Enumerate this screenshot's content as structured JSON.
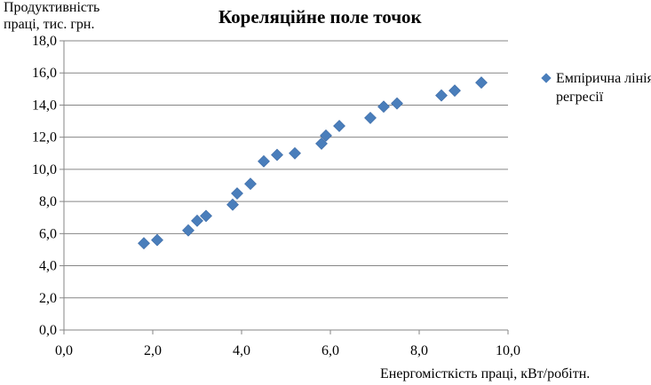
{
  "chart_data": {
    "type": "scatter",
    "title": "Кореляційне поле точок",
    "ylabel_lines": [
      "Продуктивність",
      "праці, тис. грн."
    ],
    "xlabel": "Енергомісткість праці, кВт/робітн.",
    "xlim": [
      0,
      10
    ],
    "ylim": [
      0,
      18
    ],
    "x_ticks": [
      "0,0",
      "2,0",
      "4,0",
      "6,0",
      "8,0",
      "10,0"
    ],
    "y_ticks": [
      "0,0",
      "2,0",
      "4,0",
      "6,0",
      "8,0",
      "10,0",
      "12,0",
      "14,0",
      "16,0",
      "18,0"
    ],
    "grid": "horizontal",
    "legend_position": "right",
    "series": [
      {
        "name": "Емпірична лінія регресії",
        "color": "#4a7ebb",
        "marker": "diamond",
        "points": [
          [
            1.8,
            5.4
          ],
          [
            2.1,
            5.6
          ],
          [
            2.8,
            6.2
          ],
          [
            3.0,
            6.8
          ],
          [
            3.2,
            7.1
          ],
          [
            3.8,
            7.8
          ],
          [
            3.9,
            8.5
          ],
          [
            4.2,
            9.1
          ],
          [
            4.5,
            10.5
          ],
          [
            4.8,
            10.9
          ],
          [
            5.2,
            11.0
          ],
          [
            5.8,
            11.6
          ],
          [
            5.9,
            12.1
          ],
          [
            6.2,
            12.7
          ],
          [
            6.9,
            13.2
          ],
          [
            7.2,
            13.9
          ],
          [
            7.5,
            14.1
          ],
          [
            8.5,
            14.6
          ],
          [
            8.8,
            14.9
          ],
          [
            9.4,
            15.4
          ]
        ]
      }
    ]
  }
}
